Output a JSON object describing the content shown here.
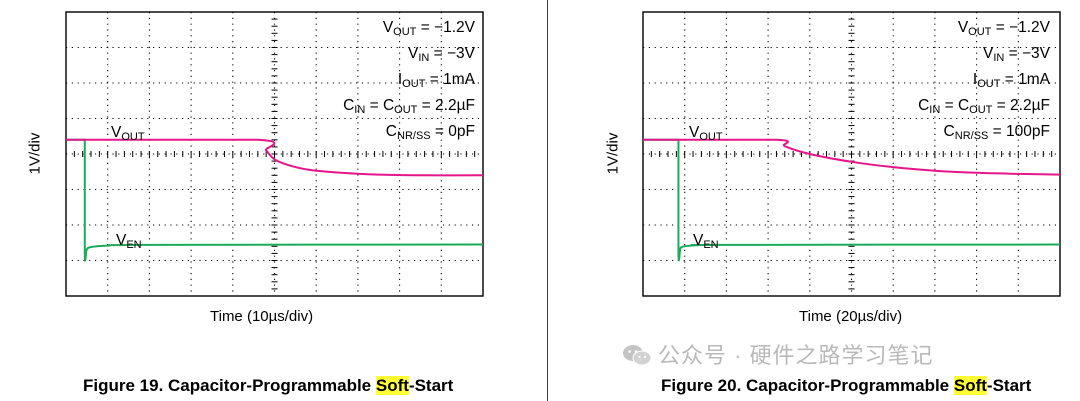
{
  "panels": [
    {
      "ylabel": "1V/div",
      "xlabel": "Time (10µs/div)",
      "caption_prefix": "Figure 19. Capacitor-Programmable ",
      "caption_highlight": "Soft",
      "caption_suffix": "-Start",
      "trace_labels": {
        "vout_main": "V",
        "vout_sub": "OUT",
        "ven_main": "V",
        "ven_sub": "EN"
      },
      "params": [
        {
          "pre": "V",
          "sub": "OUT",
          "post": " = −1.2V"
        },
        {
          "pre": "V",
          "sub": "IN",
          "post": " = −3V"
        },
        {
          "pre": "I",
          "sub": "OUT",
          "post": " = 1mA"
        },
        {
          "pre": "C",
          "sub": "IN",
          "mid": " = C",
          "sub2": "OUT",
          "post": " = 2.2µF"
        },
        {
          "pre": "C",
          "sub": "NR/SS",
          "post": " = 0pF"
        }
      ]
    },
    {
      "ylabel": "1V/div",
      "xlabel": "Time (20µs/div)",
      "caption_prefix": "Figure 20. Capacitor-Programmable ",
      "caption_highlight": "Soft",
      "caption_suffix": "-Start",
      "trace_labels": {
        "vout_main": "V",
        "vout_sub": "OUT",
        "ven_main": "V",
        "ven_sub": "EN"
      },
      "params": [
        {
          "pre": "V",
          "sub": "OUT",
          "post": " = −1.2V"
        },
        {
          "pre": "V",
          "sub": "IN",
          "post": " = −3V"
        },
        {
          "pre": "I",
          "sub": "OUT",
          "post": " = 1mA"
        },
        {
          "pre": "C",
          "sub": "IN",
          "mid": " = C",
          "sub2": "OUT",
          "post": " = 2.2µF"
        },
        {
          "pre": "C",
          "sub": "NR/SS",
          "post": " = 100pF"
        }
      ]
    }
  ],
  "watermark": {
    "text": "公众号 · 硬件之路学习笔记",
    "icon": "wechat-icon"
  },
  "colors": {
    "vout": "#e5168a",
    "ven": "#1aaa5a",
    "grid": "#000000",
    "highlight": "#ffff33"
  },
  "chart_data": [
    {
      "type": "line",
      "title": "Figure 19. Capacitor-Programmable Soft-Start",
      "xlabel": "Time (10µs/div)",
      "ylabel": "1V/div",
      "x_unit": "divisions",
      "y_unit": "divisions",
      "xlim": [
        0,
        10
      ],
      "ylim": [
        0,
        8
      ],
      "grid": true,
      "series": [
        {
          "name": "VOUT",
          "x": [
            0,
            4.6,
            4.8,
            5.0,
            5.3,
            5.8,
            6.5,
            7.5,
            8.5,
            10
          ],
          "y": [
            4.4,
            4.4,
            4.1,
            3.85,
            3.7,
            3.56,
            3.48,
            3.42,
            3.4,
            3.4
          ]
        },
        {
          "name": "VEN",
          "x": [
            0,
            0.45,
            0.45,
            0.5,
            0.6,
            1.0,
            2.0,
            10
          ],
          "y": [
            4.4,
            4.4,
            1.2,
            1.32,
            1.38,
            1.42,
            1.44,
            1.45
          ]
        }
      ]
    },
    {
      "type": "line",
      "title": "Figure 20. Capacitor-Programmable Soft-Start",
      "xlabel": "Time (20µs/div)",
      "ylabel": "1V/div",
      "x_unit": "divisions",
      "y_unit": "divisions",
      "xlim": [
        0,
        10
      ],
      "ylim": [
        0,
        8
      ],
      "grid": true,
      "series": [
        {
          "name": "VOUT",
          "x": [
            0,
            3.2,
            3.4,
            4.0,
            5.0,
            6.0,
            7.0,
            8.0,
            9.0,
            10
          ],
          "y": [
            4.4,
            4.4,
            4.22,
            4.0,
            3.78,
            3.63,
            3.53,
            3.47,
            3.44,
            3.42
          ]
        },
        {
          "name": "VEN",
          "x": [
            0,
            0.85,
            0.85,
            0.9,
            1.0,
            1.3,
            2.0,
            10
          ],
          "y": [
            4.4,
            4.4,
            1.2,
            1.35,
            1.4,
            1.43,
            1.44,
            1.45
          ]
        }
      ]
    }
  ]
}
